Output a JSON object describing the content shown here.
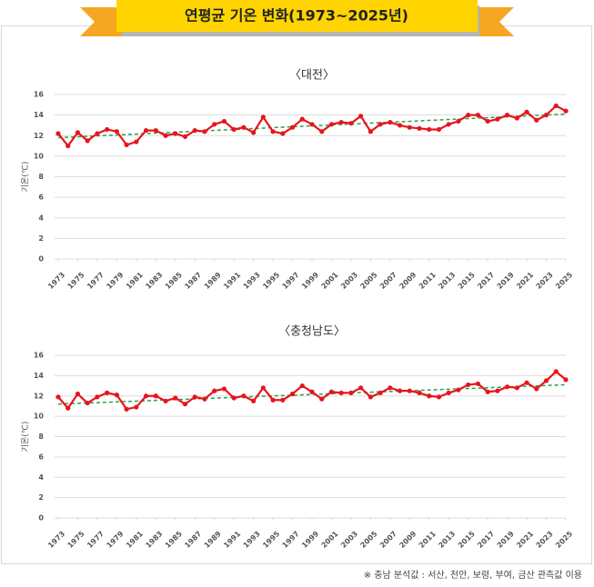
{
  "title": "연평균 기온 변화(1973~2025년)",
  "note": "※ 충남 분석값 : 서산, 천안, 보령, 부여, 금산 관측값 이용",
  "chart_data": [
    {
      "type": "line",
      "title": "〈대전〉",
      "y_label": "기온(℃)",
      "x": [
        1973,
        1974,
        1975,
        1976,
        1977,
        1978,
        1979,
        1980,
        1981,
        1982,
        1983,
        1984,
        1985,
        1986,
        1987,
        1988,
        1989,
        1990,
        1991,
        1992,
        1993,
        1994,
        1995,
        1996,
        1997,
        1998,
        1999,
        2000,
        2001,
        2002,
        2003,
        2004,
        2005,
        2006,
        2007,
        2008,
        2009,
        2010,
        2011,
        2012,
        2013,
        2014,
        2015,
        2016,
        2017,
        2018,
        2019,
        2020,
        2021,
        2022,
        2023,
        2024,
        2025
      ],
      "xlim": [
        1973,
        2025
      ],
      "xticks": [
        1973,
        1975,
        1977,
        1979,
        1981,
        1983,
        1985,
        1987,
        1989,
        1991,
        1993,
        1995,
        1997,
        1999,
        2001,
        2003,
        2005,
        2007,
        2009,
        2011,
        2013,
        2015,
        2017,
        2019,
        2021,
        2023,
        2025
      ],
      "ylim": [
        0,
        16
      ],
      "yticks": [
        0,
        2,
        4,
        6,
        8,
        10,
        12,
        14,
        16
      ],
      "grid": true,
      "series": [
        {
          "color": "#e8141c",
          "values": [
            12.2,
            11.0,
            12.3,
            11.5,
            12.2,
            12.6,
            12.4,
            11.1,
            11.4,
            12.5,
            12.5,
            12.0,
            12.2,
            11.9,
            12.5,
            12.4,
            13.1,
            13.4,
            12.6,
            12.8,
            12.3,
            13.8,
            12.4,
            12.2,
            12.8,
            13.6,
            13.1,
            12.4,
            13.1,
            13.3,
            13.2,
            13.9,
            12.4,
            13.1,
            13.3,
            13.0,
            12.8,
            12.7,
            12.6,
            12.6,
            13.1,
            13.4,
            14.0,
            14.0,
            13.4,
            13.6,
            14.0,
            13.7,
            14.3,
            13.5,
            14.0,
            14.9,
            14.4
          ]
        }
      ],
      "trend": {
        "color": "#2e9e4f",
        "values": [
          11.8,
          14.1
        ]
      }
    },
    {
      "type": "line",
      "title": "〈충청남도〉",
      "y_label": "기온(℃)",
      "x": [
        1973,
        1974,
        1975,
        1976,
        1977,
        1978,
        1979,
        1980,
        1981,
        1982,
        1983,
        1984,
        1985,
        1986,
        1987,
        1988,
        1989,
        1990,
        1991,
        1992,
        1993,
        1994,
        1995,
        1996,
        1997,
        1998,
        1999,
        2000,
        2001,
        2002,
        2003,
        2004,
        2005,
        2006,
        2007,
        2008,
        2009,
        2010,
        2011,
        2012,
        2013,
        2014,
        2015,
        2016,
        2017,
        2018,
        2019,
        2020,
        2021,
        2022,
        2023,
        2024,
        2025
      ],
      "xlim": [
        1973,
        2025
      ],
      "xticks": [
        1973,
        1975,
        1977,
        1979,
        1981,
        1983,
        1985,
        1987,
        1989,
        1991,
        1993,
        1995,
        1997,
        1999,
        2001,
        2003,
        2005,
        2007,
        2009,
        2011,
        2013,
        2015,
        2017,
        2019,
        2021,
        2023,
        2025
      ],
      "ylim": [
        0,
        16
      ],
      "yticks": [
        0,
        2,
        4,
        6,
        8,
        10,
        12,
        14,
        16
      ],
      "grid": true,
      "series": [
        {
          "color": "#e8141c",
          "values": [
            11.9,
            10.8,
            12.2,
            11.3,
            11.9,
            12.3,
            12.1,
            10.7,
            10.9,
            12.0,
            12.0,
            11.5,
            11.8,
            11.2,
            11.9,
            11.7,
            12.5,
            12.7,
            11.8,
            12.0,
            11.5,
            12.8,
            11.6,
            11.6,
            12.2,
            13.0,
            12.4,
            11.7,
            12.4,
            12.3,
            12.3,
            12.8,
            11.9,
            12.3,
            12.8,
            12.5,
            12.5,
            12.3,
            12.0,
            11.9,
            12.3,
            12.6,
            13.1,
            13.2,
            12.4,
            12.5,
            12.9,
            12.8,
            13.3,
            12.7,
            13.5,
            14.4,
            13.6
          ]
        }
      ],
      "trend": {
        "color": "#2e9e4f",
        "values": [
          11.2,
          13.1
        ]
      }
    }
  ]
}
